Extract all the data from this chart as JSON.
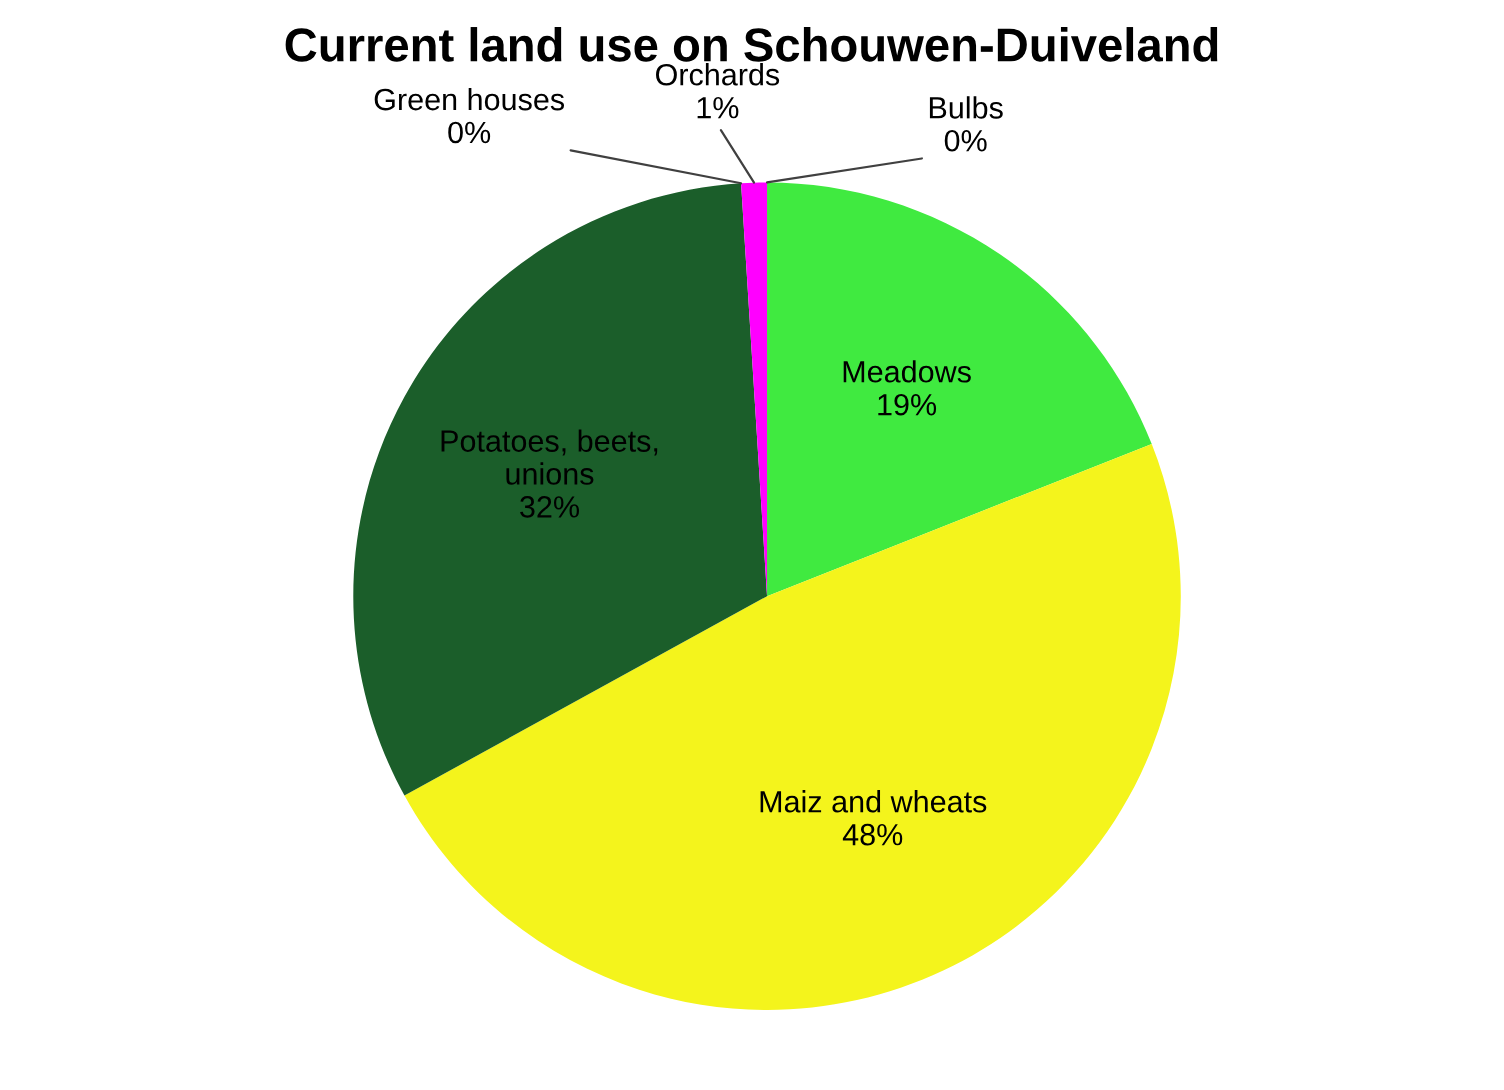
{
  "chart_data": {
    "type": "pie",
    "title": "Current land use on Schouwen-Duiveland",
    "categories": [
      "Bulbs",
      "Meadows",
      "Maiz and wheats",
      "Potatoes, beets,\nunions",
      "Green houses",
      "Orchards"
    ],
    "values": [
      0,
      19,
      48,
      32,
      0,
      1
    ],
    "value_labels": [
      "0%",
      "19%",
      "48%",
      "32%",
      "0%",
      "1%"
    ],
    "colors": [
      "#c00000",
      "#40ea40",
      "#f4f41c",
      "#1b5e2a",
      "#7f7f7f",
      "#ff00ff"
    ]
  }
}
